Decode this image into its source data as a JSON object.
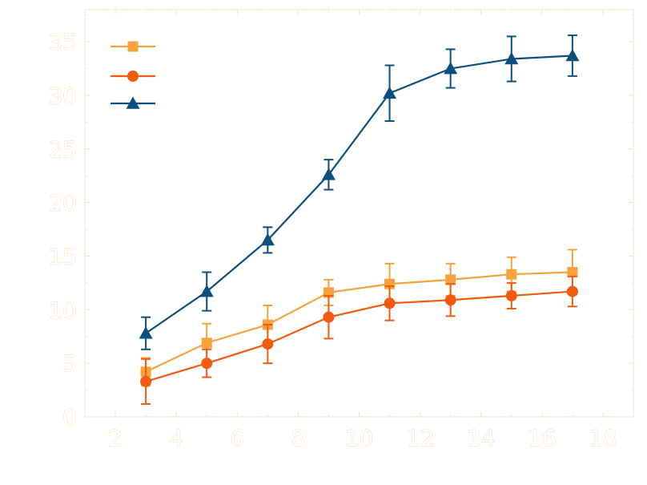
{
  "chart_data": {
    "type": "line",
    "title": "",
    "xlabel": "",
    "ylabel": "",
    "xlim": [
      1,
      19
    ],
    "ylim": [
      0,
      38
    ],
    "x_ticks": [
      2,
      4,
      6,
      8,
      10,
      12,
      14,
      16,
      18
    ],
    "y_ticks": [
      0,
      5,
      10,
      15,
      20,
      25,
      30,
      35
    ],
    "grid": false,
    "legend": {
      "position": "top-left",
      "entries_labeled": false
    },
    "colors": {
      "frame": "#f4e3cc",
      "tick_text": "#f6d9b0"
    },
    "x": [
      3,
      5,
      7,
      9,
      11,
      13,
      15,
      17
    ],
    "series": [
      {
        "marker": "square",
        "color": "#f7a23b",
        "values": [
          4.2,
          6.9,
          8.6,
          11.6,
          12.4,
          12.8,
          13.3,
          13.5
        ],
        "errors": [
          1.3,
          1.8,
          1.8,
          1.2,
          1.9,
          1.5,
          1.6,
          2.1
        ]
      },
      {
        "marker": "circle",
        "color": "#f15a0f",
        "values": [
          3.3,
          5.0,
          6.8,
          9.3,
          10.6,
          10.9,
          11.3,
          11.7
        ],
        "errors": [
          2.1,
          1.3,
          1.8,
          2.0,
          1.6,
          1.5,
          1.2,
          1.4
        ]
      },
      {
        "marker": "triangle",
        "color": "#0b4f7d",
        "values": [
          7.8,
          11.7,
          16.5,
          22.6,
          30.2,
          32.5,
          33.4,
          33.7
        ],
        "errors": [
          1.5,
          1.8,
          1.2,
          1.4,
          2.6,
          1.8,
          2.1,
          1.9
        ]
      }
    ]
  }
}
